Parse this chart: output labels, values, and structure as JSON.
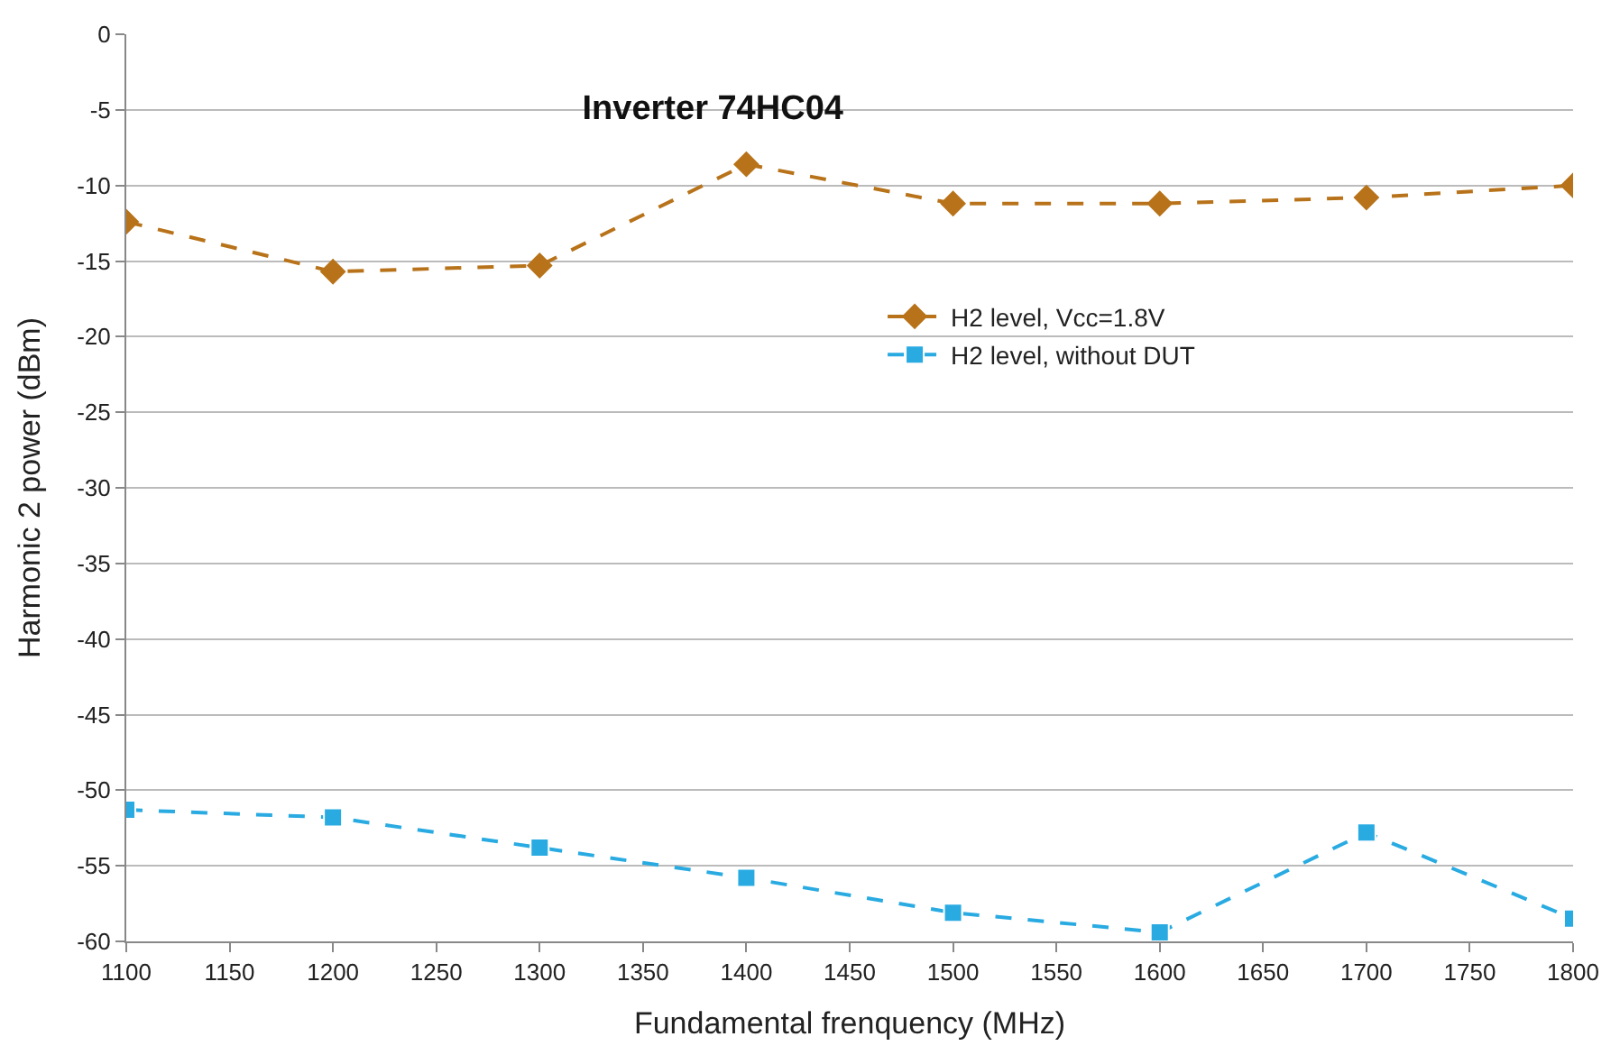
{
  "chart_data": {
    "type": "line",
    "title": "Inverter 74HC04",
    "xlabel": "Fundamental frenquency (MHz)",
    "ylabel": "Harmonic 2 power (dBm)",
    "x": [
      1100,
      1200,
      1300,
      1400,
      1500,
      1600,
      1700,
      1800
    ],
    "series": [
      {
        "name": "H2 level, Vcc=1.8V",
        "color": "#b8731a",
        "marker": "diamond",
        "values": [
          -12.4,
          -15.7,
          -15.3,
          -8.6,
          -11.2,
          -11.2,
          -10.8,
          -10.0
        ]
      },
      {
        "name": "H2 level, without DUT",
        "color": "#29abe2",
        "marker": "square",
        "values": [
          -51.3,
          -51.8,
          -53.8,
          -55.8,
          -58.1,
          -59.4,
          -52.8,
          -58.5
        ]
      }
    ],
    "xlim": [
      1100,
      1800
    ],
    "xticks": [
      1100,
      1150,
      1200,
      1250,
      1300,
      1350,
      1400,
      1450,
      1500,
      1550,
      1600,
      1650,
      1700,
      1750,
      1800
    ],
    "ylim": [
      -60,
      0
    ],
    "yticks": [
      -60,
      -55,
      -50,
      -45,
      -40,
      -35,
      -30,
      -25,
      -20,
      -15,
      -10,
      -5,
      0
    ],
    "grid": "y",
    "legend": "right",
    "line_style": "dashed"
  }
}
